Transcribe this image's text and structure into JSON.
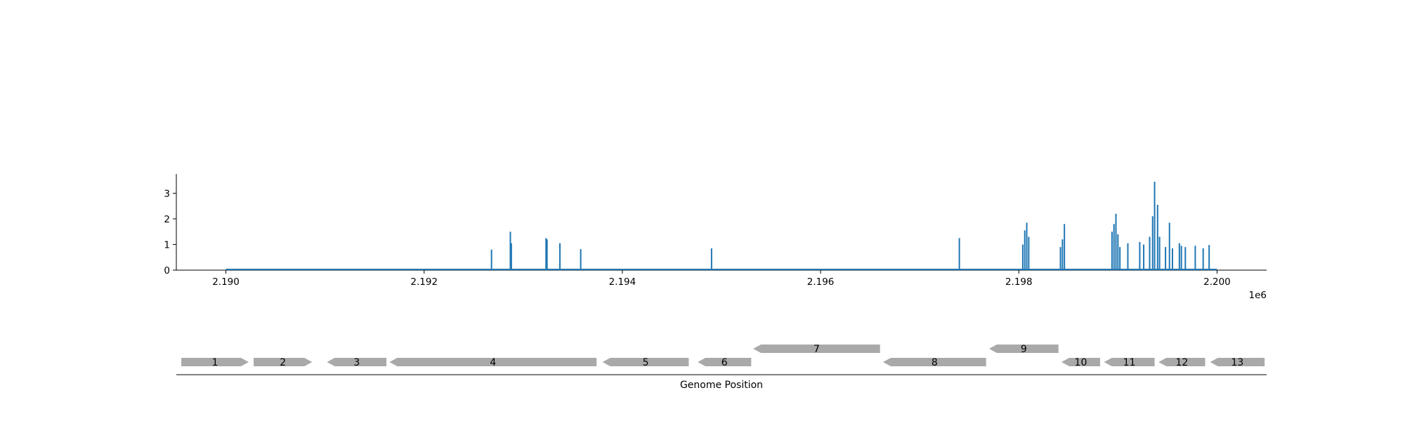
{
  "chart_data": [
    {
      "type": "bar",
      "title": "",
      "xlabel": "",
      "ylabel": "",
      "x_offset_label": "1e6",
      "xlim": [
        2.1895,
        2.2005
      ],
      "ylim": [
        0,
        3.75
      ],
      "x_ticks": [
        2.19,
        2.192,
        2.194,
        2.196,
        2.198,
        2.2
      ],
      "x_tick_labels": [
        "2.190",
        "2.192",
        "2.194",
        "2.196",
        "2.198",
        "2.200"
      ],
      "y_ticks": [
        0,
        1,
        2,
        3
      ],
      "y_tick_labels": [
        "0",
        "1",
        "2",
        "3"
      ],
      "baseline_range": [
        2.19,
        2.2
      ],
      "grid": false,
      "color": "#1f77b4",
      "x": [
        2.19268,
        2.19287,
        2.19288,
        2.19323,
        2.19324,
        2.19337,
        2.19358,
        2.1949,
        2.1974,
        2.19804,
        2.19806,
        2.19808,
        2.1981,
        2.19842,
        2.19844,
        2.19846,
        2.19894,
        2.19896,
        2.19898,
        2.199,
        2.19902,
        2.1991,
        2.19922,
        2.19926,
        2.19932,
        2.19935,
        2.19937,
        2.1994,
        2.19942,
        2.19948,
        2.19952,
        2.19955,
        2.19962,
        2.19964,
        2.19968,
        2.19978,
        2.19986,
        2.19992
      ],
      "values": [
        0.8,
        1.5,
        1.05,
        1.25,
        1.2,
        1.05,
        0.82,
        0.85,
        1.25,
        1.0,
        1.55,
        1.85,
        1.3,
        0.9,
        1.2,
        1.8,
        1.5,
        1.8,
        2.2,
        1.4,
        0.9,
        1.05,
        1.1,
        1.0,
        1.3,
        2.1,
        3.45,
        2.55,
        1.3,
        0.9,
        1.85,
        0.85,
        1.05,
        0.95,
        0.9,
        0.95,
        0.85,
        0.98
      ]
    },
    {
      "type": "gene-track",
      "xlabel": "Genome Position",
      "color": "#a9a9a9",
      "genes": [
        {
          "label": "1",
          "start": 2.18955,
          "end": 2.19023,
          "strand": "+",
          "row": 0
        },
        {
          "label": "2",
          "start": 2.19028,
          "end": 2.19087,
          "strand": "+",
          "row": 0
        },
        {
          "label": "3",
          "start": 2.19102,
          "end": 2.19162,
          "strand": "-",
          "row": 0
        },
        {
          "label": "4",
          "start": 2.19165,
          "end": 2.19374,
          "strand": "-",
          "row": 0
        },
        {
          "label": "5",
          "start": 2.1938,
          "end": 2.19467,
          "strand": "-",
          "row": 0
        },
        {
          "label": "6",
          "start": 2.19476,
          "end": 2.1953,
          "strand": "-",
          "row": 0
        },
        {
          "label": "7",
          "start": 2.19532,
          "end": 2.1966,
          "strand": "-",
          "row": 1
        },
        {
          "label": "8",
          "start": 2.19663,
          "end": 2.19767,
          "strand": "-",
          "row": 0
        },
        {
          "label": "9",
          "start": 2.1977,
          "end": 2.1984,
          "strand": "-",
          "row": 1
        },
        {
          "label": "10",
          "start": 2.19843,
          "end": 2.19882,
          "strand": "-",
          "row": 0
        },
        {
          "label": "11",
          "start": 2.19886,
          "end": 2.19937,
          "strand": "-",
          "row": 0
        },
        {
          "label": "12",
          "start": 2.19941,
          "end": 2.19988,
          "strand": "-",
          "row": 0
        },
        {
          "label": "13",
          "start": 2.19993,
          "end": 2.20048,
          "strand": "-",
          "row": 0
        }
      ]
    }
  ]
}
